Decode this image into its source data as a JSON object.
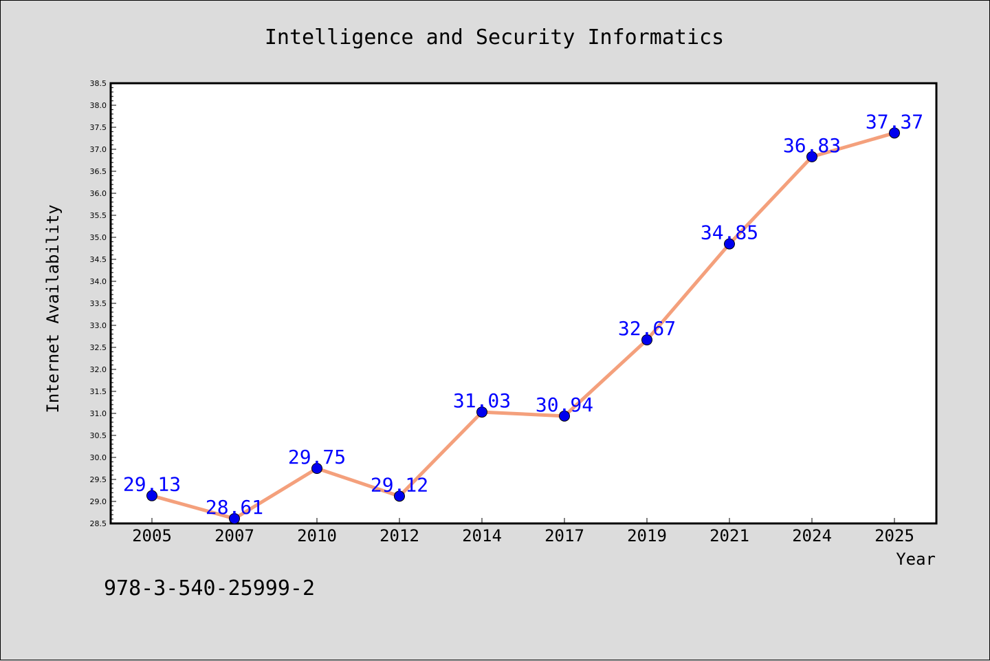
{
  "chart_data": {
    "type": "line",
    "title": "Intelligence and Security Informatics",
    "xlabel": "Year",
    "ylabel": "Internet Availability",
    "annotation": "978-3-540-25999-2",
    "categories": [
      "2005",
      "2007",
      "2010",
      "2012",
      "2014",
      "2017",
      "2019",
      "2021",
      "2024",
      "2025"
    ],
    "series": [
      {
        "values": [
          29.13,
          28.61,
          29.75,
          29.12,
          31.03,
          30.94,
          32.67,
          34.85,
          36.83,
          37.37
        ],
        "labels": [
          "29.13",
          "28.61",
          "29.75",
          "29.12",
          "31.03",
          "30.94",
          "32.67",
          "34.85",
          "36.83",
          "37.37"
        ]
      }
    ],
    "ylim": [
      28.5,
      38.5
    ],
    "y_ticks": [
      "28.5",
      "29.0",
      "29.5",
      "30.0",
      "30.5",
      "31.0",
      "31.5",
      "32.0",
      "32.5",
      "33.0",
      "33.5",
      "34.0",
      "34.5",
      "35.0",
      "35.5",
      "36.0",
      "36.5",
      "37.0",
      "37.5",
      "38.0",
      "38.5"
    ],
    "grid": false,
    "legend": "none",
    "colors": {
      "line": "#f4a07c",
      "marker": "#0000ee",
      "label": "#0000ff",
      "background": "#dcdcdc",
      "plot_background": "#ffffff"
    }
  }
}
